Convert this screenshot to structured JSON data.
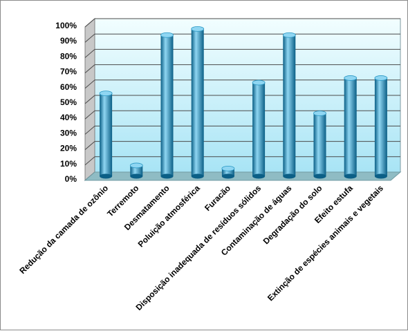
{
  "chart_data": {
    "type": "bar",
    "categories": [
      "Redução da camada de  ozônio",
      "Terremoto",
      "Desmatamento",
      "Poluição atmosférica",
      "Furacão",
      "Disposição inadequada de resíduos sólidos",
      "Contaminação de águas",
      "Degradação do solo",
      "Efeito estufa",
      "Extinção de espécies animais e vegetais"
    ],
    "values": [
      54,
      7,
      92,
      96,
      5,
      61,
      92,
      41,
      64,
      64
    ],
    "ylim": [
      0,
      100
    ],
    "yticks": [
      "0%",
      "10%",
      "20%",
      "30%",
      "40%",
      "50%",
      "60%",
      "70%",
      "80%",
      "90%",
      "100%"
    ],
    "grid": true,
    "style": "3d-cylinder",
    "colors": {
      "bar": "#2a98c4",
      "bar_light": "#8fd6f2",
      "bar_dark": "#0b5f86",
      "wall_top": "#f2feff",
      "wall_bottom": "#a8e4f5",
      "floor": "#8fbcc4",
      "gridline": "#4a4a4a"
    }
  }
}
